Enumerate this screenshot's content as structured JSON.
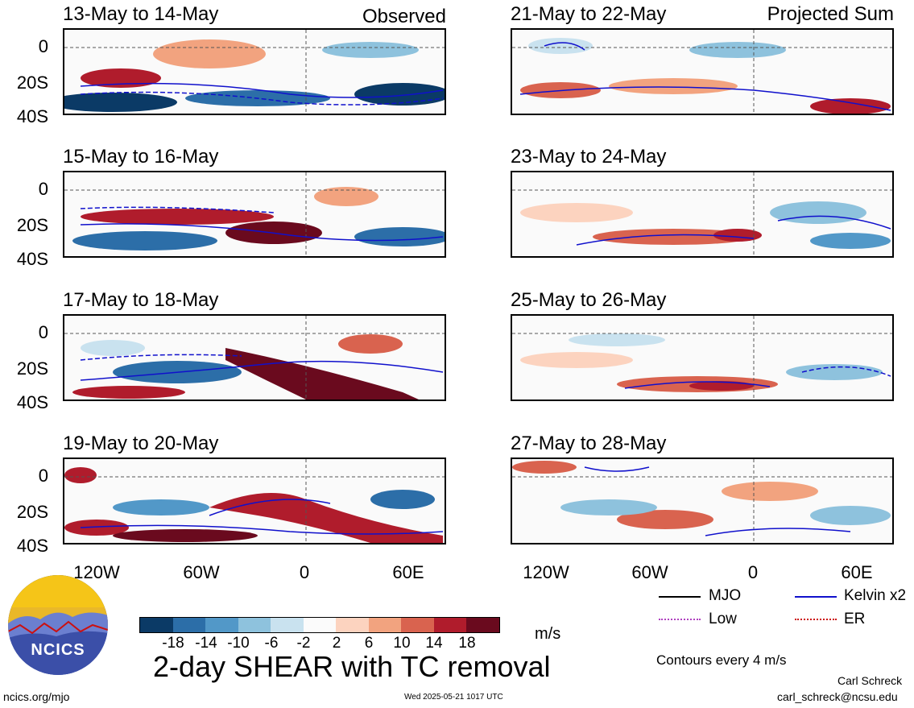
{
  "panels": {
    "p1": {
      "title": "13-May to 14-May",
      "tag": "Observed"
    },
    "p2": {
      "title": "15-May to 16-May"
    },
    "p3": {
      "title": "17-May to 18-May"
    },
    "p4": {
      "title": "19-May to 20-May"
    },
    "p5": {
      "title": "21-May to 22-May",
      "tag": "Projected Sum"
    },
    "p6": {
      "title": "23-May to 24-May"
    },
    "p7": {
      "title": "25-May to 26-May"
    },
    "p8": {
      "title": "27-May to 28-May"
    }
  },
  "axes": {
    "y_ticks": [
      "0",
      "20S",
      "40S"
    ],
    "x_ticks": [
      "120W",
      "60W",
      "0",
      "60E"
    ]
  },
  "legend": {
    "mjo": "MJO",
    "kelvin": "Kelvin x2",
    "low": "Low",
    "er": "ER",
    "contours": "Contours every 4 m/s",
    "colors": {
      "mjo": "#000000",
      "kelvin": "#1010cc",
      "low": "#b040c0",
      "er": "#cc1010"
    }
  },
  "colorbar": {
    "unit": "m/s",
    "labels": [
      "-18",
      "-14",
      "-10",
      "-6",
      "-2",
      "2",
      "6",
      "10",
      "14",
      "18"
    ],
    "colors": [
      "#0b3a66",
      "#2c6ea8",
      "#5298c8",
      "#8ec2dd",
      "#c9e2ef",
      "#fbfbfb",
      "#fcd3bf",
      "#f2a37f",
      "#d9634f",
      "#b01c2c",
      "#6a0a1e"
    ]
  },
  "main_title": "2-day SHEAR with TC removal",
  "footer": {
    "site": "ncics.org/mjo",
    "timestamp": "Wed 2025-05-21 1017 UTC",
    "author": "Carl Schreck",
    "email": "carl_schreck@ncsu.edu",
    "logo_text": "NCICS"
  }
}
